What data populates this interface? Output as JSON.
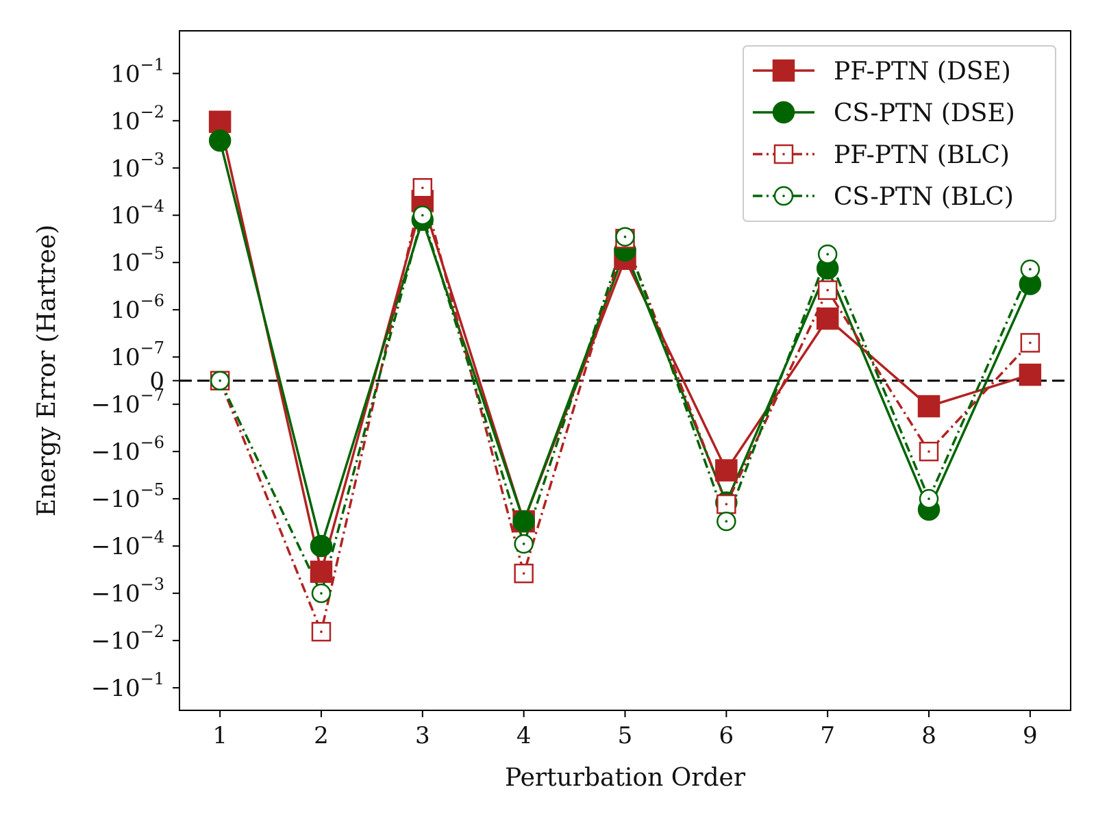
{
  "chart_data": {
    "type": "line",
    "xlabel": "Perturbation Order",
    "ylabel": "Energy Error (Hartree)",
    "x": [
      1,
      2,
      3,
      4,
      5,
      6,
      7,
      8,
      9
    ],
    "xticks": [
      "1",
      "2",
      "3",
      "4",
      "5",
      "6",
      "7",
      "8",
      "9"
    ],
    "xlim": [
      0.6,
      9.4
    ],
    "yscale": "symlog",
    "ylim": [
      -0.3,
      0.8
    ],
    "yticks": [
      {
        "value": 0.1,
        "base": "10",
        "exp": "−1",
        "sign": ""
      },
      {
        "value": 0.01,
        "base": "10",
        "exp": "−2",
        "sign": ""
      },
      {
        "value": 0.001,
        "base": "10",
        "exp": "−3",
        "sign": ""
      },
      {
        "value": 0.0001,
        "base": "10",
        "exp": "−4",
        "sign": ""
      },
      {
        "value": 1e-05,
        "base": "10",
        "exp": "−5",
        "sign": ""
      },
      {
        "value": 1e-06,
        "base": "10",
        "exp": "−6",
        "sign": ""
      },
      {
        "value": 1e-07,
        "base": "10",
        "exp": "−7",
        "sign": ""
      },
      {
        "value": 0,
        "base": "0",
        "exp": "",
        "sign": ""
      },
      {
        "value": -1e-07,
        "base": "10",
        "exp": "−7",
        "sign": "−"
      },
      {
        "value": -1e-06,
        "base": "10",
        "exp": "−6",
        "sign": "−"
      },
      {
        "value": -1e-05,
        "base": "10",
        "exp": "−5",
        "sign": "−"
      },
      {
        "value": -0.0001,
        "base": "10",
        "exp": "−4",
        "sign": "−"
      },
      {
        "value": -0.001,
        "base": "10",
        "exp": "−3",
        "sign": "−"
      },
      {
        "value": -0.01,
        "base": "10",
        "exp": "−2",
        "sign": "−"
      },
      {
        "value": -0.1,
        "base": "10",
        "exp": "−1",
        "sign": "−"
      }
    ],
    "reference_line": {
      "value": 0,
      "style": "dashed",
      "color": "#000000"
    },
    "legend_position": "top-right",
    "grid": false,
    "series": [
      {
        "name": "PF-PTN (DSE)",
        "color": "#b22222",
        "marker": "square",
        "filled": true,
        "linestyle": "solid",
        "values": [
          0.0095,
          -0.00035,
          0.0002,
          -3e-05,
          1.2e-05,
          -2.5e-06,
          6.5e-07,
          -1.1e-07,
          2.5e-08
        ]
      },
      {
        "name": "CS-PTN (DSE)",
        "color": "#006400",
        "marker": "circle",
        "filled": true,
        "linestyle": "solid",
        "values": [
          0.0038,
          -0.0001,
          8e-05,
          -3e-05,
          1.8e-05,
          -1.2e-05,
          7.5e-06,
          -1.7e-05,
          3.5e-06
        ]
      },
      {
        "name": "PF-PTN (BLC)",
        "color": "#b22222",
        "marker": "square",
        "filled": false,
        "linestyle": "dashdot",
        "values": [
          0,
          -0.0065,
          0.00038,
          -0.00038,
          3.2e-05,
          -1.3e-05,
          2.6e-06,
          -1e-06,
          2e-07
        ]
      },
      {
        "name": "CS-PTN (BLC)",
        "color": "#006400",
        "marker": "circle",
        "filled": false,
        "linestyle": "dashdot",
        "values": [
          0,
          -0.001,
          0.0001,
          -9e-05,
          3.5e-05,
          -3e-05,
          1.5e-05,
          -1e-05,
          7.2e-06
        ]
      }
    ]
  }
}
